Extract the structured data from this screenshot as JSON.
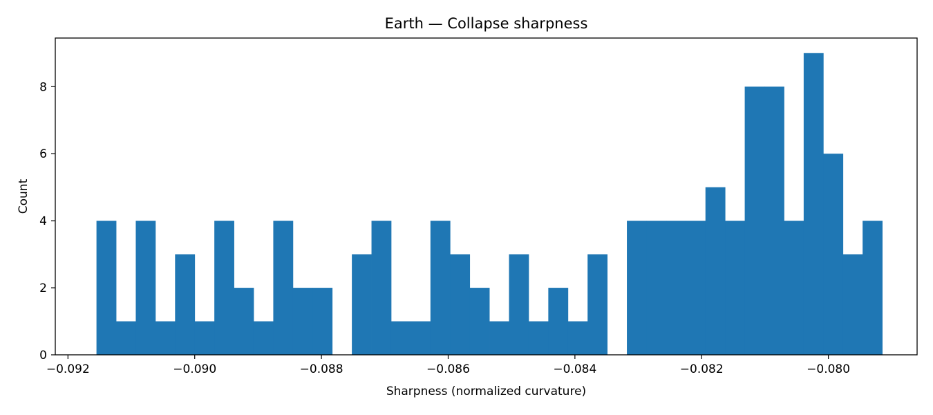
{
  "chart_data": {
    "type": "bar",
    "title": "Earth — Collapse sharpness",
    "xlabel": "Sharpness (normalized curvature)",
    "ylabel": "Count",
    "xlim": [
      -0.0922,
      -0.0786
    ],
    "ylim": [
      0,
      9.45
    ],
    "xticks": [
      -0.092,
      -0.09,
      -0.088,
      -0.086,
      -0.084,
      -0.082,
      -0.08
    ],
    "xtick_labels": [
      "−0.092",
      "−0.090",
      "−0.088",
      "−0.086",
      "−0.084",
      "−0.082",
      "−0.080"
    ],
    "yticks": [
      0,
      2,
      4,
      6,
      8
    ],
    "ytick_labels": [
      "0",
      "2",
      "4",
      "6",
      "8"
    ],
    "bin_start": -0.09155,
    "bin_width": 0.00031,
    "values": [
      4,
      1,
      4,
      1,
      3,
      1,
      4,
      2,
      1,
      4,
      2,
      2,
      0,
      3,
      4,
      1,
      1,
      4,
      3,
      2,
      1,
      3,
      1,
      2,
      1,
      3,
      0,
      4,
      4,
      4,
      4,
      5,
      4,
      8,
      8,
      4,
      9,
      6,
      3,
      4
    ],
    "bar_color": "#1f77b4",
    "grid": false,
    "legend": false
  }
}
